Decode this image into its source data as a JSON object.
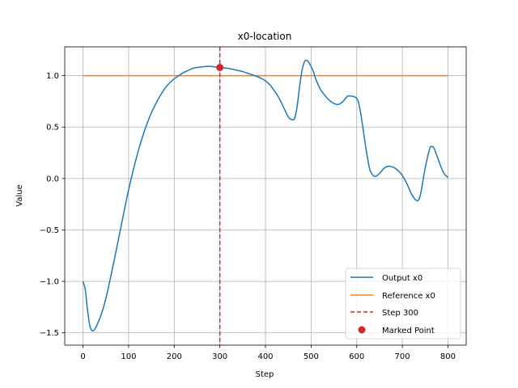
{
  "chart_data": {
    "type": "line",
    "title": "x0-location",
    "xlabel": "Step",
    "ylabel": "Value",
    "xlim": [
      -40,
      840
    ],
    "ylim": [
      -1.62,
      1.28
    ],
    "xticks": [
      0,
      100,
      200,
      300,
      400,
      500,
      600,
      700,
      800
    ],
    "xtick_labels": [
      "0",
      "100",
      "200",
      "300",
      "400",
      "500",
      "600",
      "700",
      "800"
    ],
    "yticks": [
      -1.5,
      -1.0,
      -0.5,
      0.0,
      0.5,
      1.0
    ],
    "ytick_labels": [
      "−1.5",
      "−1.0",
      "−0.5",
      "0.0",
      "0.5",
      "1.0"
    ],
    "grid": true,
    "legend_position": "lower-right",
    "series": [
      {
        "name": "Output x0",
        "color": "#1f77b4",
        "style": "solid",
        "x": [
          0,
          5,
          10,
          15,
          20,
          25,
          30,
          40,
          50,
          60,
          70,
          80,
          90,
          100,
          110,
          120,
          130,
          140,
          150,
          160,
          170,
          180,
          190,
          200,
          210,
          220,
          230,
          240,
          250,
          260,
          270,
          280,
          290,
          300,
          310,
          320,
          330,
          340,
          350,
          360,
          370,
          380,
          390,
          400,
          410,
          420,
          430,
          440,
          450,
          460,
          465,
          470,
          475,
          480,
          485,
          490,
          495,
          500,
          505,
          510,
          520,
          530,
          540,
          550,
          560,
          570,
          580,
          590,
          600,
          605,
          610,
          615,
          620,
          625,
          630,
          640,
          650,
          660,
          670,
          680,
          690,
          700,
          710,
          720,
          730,
          735,
          740,
          750,
          760,
          765,
          770,
          780,
          790,
          800
        ],
        "y": [
          -1.0,
          -1.08,
          -1.28,
          -1.43,
          -1.48,
          -1.47,
          -1.43,
          -1.32,
          -1.17,
          -0.97,
          -0.76,
          -0.54,
          -0.32,
          -0.11,
          0.08,
          0.25,
          0.4,
          0.53,
          0.64,
          0.73,
          0.81,
          0.88,
          0.93,
          0.97,
          1.0,
          1.03,
          1.05,
          1.07,
          1.08,
          1.085,
          1.09,
          1.09,
          1.085,
          1.08,
          1.075,
          1.07,
          1.06,
          1.05,
          1.04,
          1.025,
          1.01,
          0.995,
          0.975,
          0.95,
          0.91,
          0.85,
          0.78,
          0.69,
          0.6,
          0.57,
          0.6,
          0.72,
          0.9,
          1.05,
          1.13,
          1.15,
          1.13,
          1.09,
          1.04,
          0.97,
          0.87,
          0.81,
          0.76,
          0.73,
          0.72,
          0.75,
          0.8,
          0.8,
          0.78,
          0.72,
          0.6,
          0.45,
          0.3,
          0.17,
          0.07,
          0.02,
          0.05,
          0.1,
          0.12,
          0.11,
          0.08,
          0.03,
          -0.05,
          -0.15,
          -0.21,
          -0.21,
          -0.15,
          0.1,
          0.29,
          0.31,
          0.29,
          0.17,
          0.06,
          0.01
        ]
      },
      {
        "name": "Reference x0",
        "color": "#ff7f0e",
        "style": "solid",
        "x": [
          0,
          800
        ],
        "y": [
          1.0,
          1.0
        ]
      }
    ],
    "vline": {
      "name": "Step 300",
      "x": 300,
      "color": "#d62728",
      "style": "dashed"
    },
    "marked_point": {
      "name": "Marked Point",
      "x": 300,
      "y": 1.08,
      "color": "#d62728"
    }
  }
}
